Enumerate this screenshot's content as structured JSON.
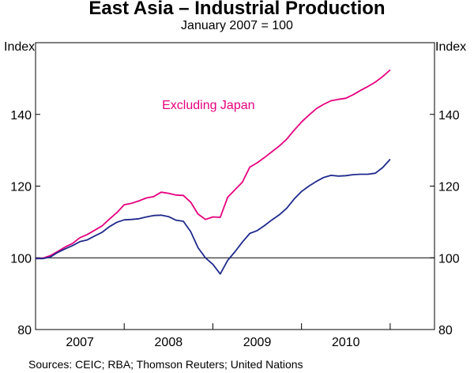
{
  "chart_data": {
    "type": "line",
    "title": "East Asia – Industrial Production",
    "subtitle": "January 2007 = 100",
    "ylabel_left": "Index",
    "ylabel_right": "Index",
    "ylim": [
      80,
      160
    ],
    "yticks": [
      80,
      100,
      120,
      140
    ],
    "ytick_labels": [
      "80",
      "100",
      "120",
      "140"
    ],
    "reference_line": 100,
    "x_start": 2006.5,
    "x_end": 2011.0,
    "year_labels": [
      {
        "label": "2007",
        "center": 2007.0
      },
      {
        "label": "2008",
        "center": 2008.0
      },
      {
        "label": "2009",
        "center": 2009.0
      },
      {
        "label": "2010",
        "center": 2010.0
      }
    ],
    "year_boundaries": [
      2007.5,
      2008.5,
      2009.5,
      2010.5
    ],
    "annotation": {
      "text": "Excluding Japan",
      "x": 2008.45,
      "y": 141.5
    },
    "series": [
      {
        "name": "Excluding Japan",
        "color": "#e6007e",
        "x": [
          2006.5,
          2006.583,
          2006.667,
          2006.75,
          2006.833,
          2006.917,
          2007.0,
          2007.083,
          2007.167,
          2007.25,
          2007.333,
          2007.417,
          2007.5,
          2007.583,
          2007.667,
          2007.75,
          2007.833,
          2007.917,
          2008.0,
          2008.083,
          2008.167,
          2008.25,
          2008.333,
          2008.417,
          2008.5,
          2008.583,
          2008.667,
          2008.75,
          2008.833,
          2008.917,
          2009.0,
          2009.083,
          2009.167,
          2009.25,
          2009.333,
          2009.417,
          2009.5,
          2009.583,
          2009.667,
          2009.75,
          2009.833,
          2009.917,
          2010.0,
          2010.083,
          2010.167,
          2010.25,
          2010.333,
          2010.417,
          2010.5
        ],
        "values": [
          99.8,
          99.9,
          100.6,
          101.8,
          103.0,
          104.0,
          105.6,
          106.5,
          107.7,
          108.9,
          110.8,
          112.6,
          114.8,
          115.2,
          115.9,
          116.7,
          117.1,
          118.3,
          118.0,
          117.5,
          117.4,
          115.5,
          112.2,
          110.7,
          111.4,
          111.3,
          116.9,
          119.0,
          121.1,
          125.3,
          126.5,
          128.0,
          129.6,
          131.2,
          133.1,
          135.6,
          137.9,
          139.8,
          141.6,
          142.8,
          143.8,
          144.2,
          144.5,
          145.5,
          146.7,
          147.8,
          149.0,
          150.6,
          152.4
        ]
      },
      {
        "name": "East Asia",
        "color": "#1f2a8c",
        "x": [
          2006.5,
          2006.583,
          2006.667,
          2006.75,
          2006.833,
          2006.917,
          2007.0,
          2007.083,
          2007.167,
          2007.25,
          2007.333,
          2007.417,
          2007.5,
          2007.583,
          2007.667,
          2007.75,
          2007.833,
          2007.917,
          2008.0,
          2008.083,
          2008.167,
          2008.25,
          2008.333,
          2008.417,
          2008.5,
          2008.583,
          2008.667,
          2008.75,
          2008.833,
          2008.917,
          2009.0,
          2009.083,
          2009.167,
          2009.25,
          2009.333,
          2009.417,
          2009.5,
          2009.583,
          2009.667,
          2009.75,
          2009.833,
          2009.917,
          2010.0,
          2010.083,
          2010.167,
          2010.25,
          2010.333,
          2010.417,
          2010.5
        ],
        "values": [
          99.8,
          99.8,
          100.2,
          101.5,
          102.5,
          103.4,
          104.5,
          105.0,
          106.1,
          107.1,
          108.7,
          109.9,
          110.6,
          110.7,
          110.9,
          111.4,
          111.8,
          111.9,
          111.5,
          110.5,
          110.2,
          107.3,
          102.8,
          100.0,
          98.2,
          95.5,
          99.3,
          101.7,
          104.4,
          106.8,
          107.6,
          109.0,
          110.6,
          112.0,
          113.8,
          116.4,
          118.5,
          120.0,
          121.3,
          122.4,
          123.0,
          122.8,
          122.9,
          123.2,
          123.3,
          123.3,
          123.6,
          125.2,
          127.5
        ]
      }
    ]
  },
  "source": "Sources: CEIC; RBA; Thomson Reuters; United Nations"
}
